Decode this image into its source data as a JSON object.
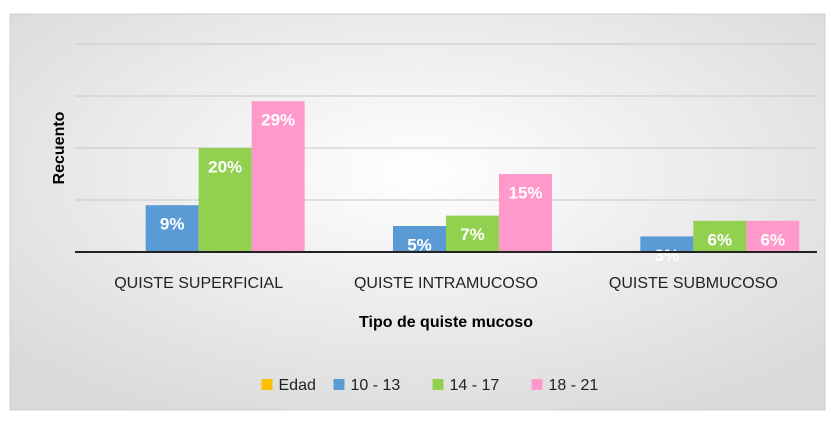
{
  "chart_data": {
    "type": "bar",
    "categories": [
      "QUISTE SUPERFICIAL",
      "QUISTE INTRAMUCOSO",
      "QUISTE SUBMUCOSO"
    ],
    "series": [
      {
        "name": "Edad",
        "color": "#ffc000",
        "values": [
          null,
          null,
          null
        ]
      },
      {
        "name": "10 - 13",
        "color": "#5b9bd5",
        "values": [
          9,
          5,
          3
        ],
        "value_labels": [
          "9%",
          "5%",
          "3%"
        ]
      },
      {
        "name": "14 - 17",
        "color": "#92d050",
        "values": [
          20,
          7,
          6
        ],
        "value_labels": [
          "20%",
          "7%",
          "6%"
        ]
      },
      {
        "name": "18 - 21",
        "color": "#ff99cc",
        "values": [
          29,
          15,
          6
        ],
        "value_labels": [
          "29%",
          "15%",
          "6%"
        ]
      }
    ],
    "y_label": "Recuento",
    "x_label": "Tipo de quiste mucoso",
    "ylim": [
      0,
      40
    ],
    "yticks": [
      0,
      10,
      20,
      30,
      40
    ],
    "grid": true,
    "legend": "bottom"
  }
}
